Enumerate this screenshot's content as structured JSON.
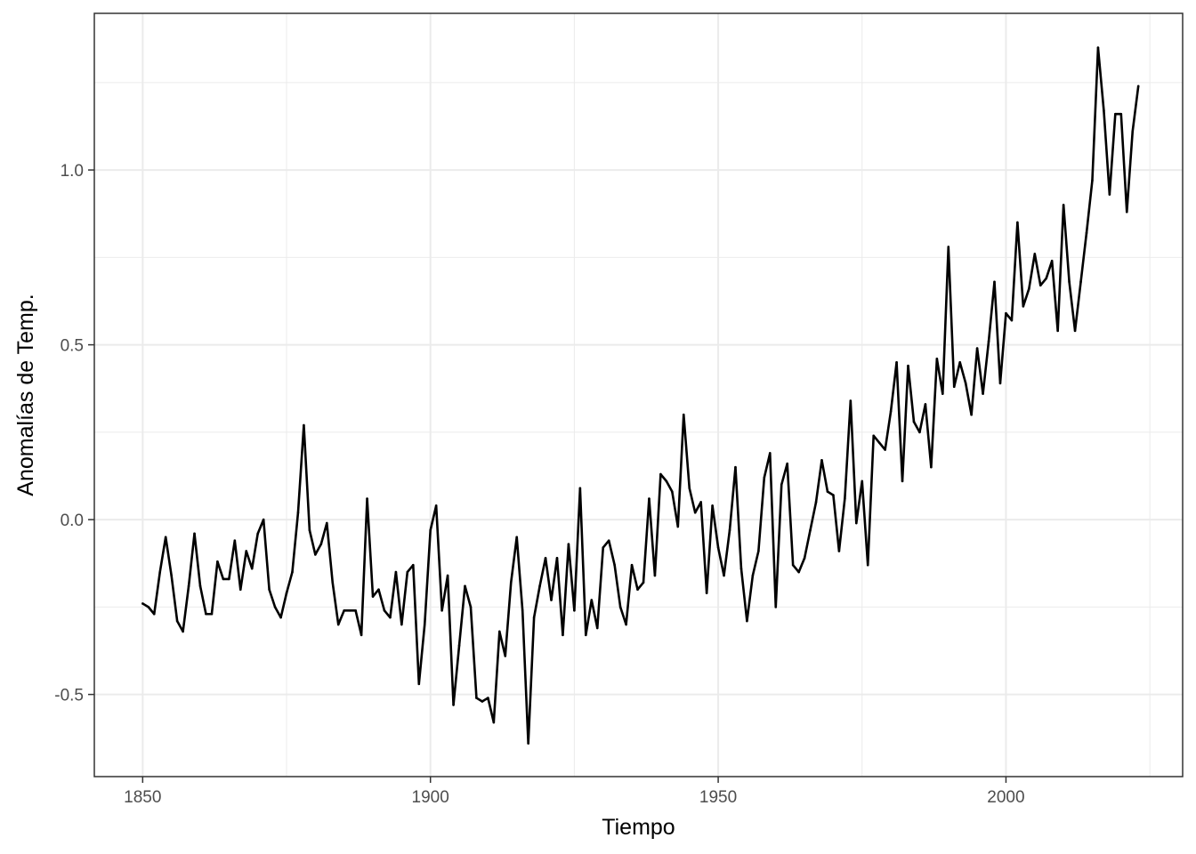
{
  "chart_data": {
    "type": "line",
    "xlabel": "Tiempo",
    "ylabel": "Anomalías de Temp.",
    "xlim": [
      1841.6,
      2030.7
    ],
    "ylim": [
      -0.735,
      1.448
    ],
    "x_ticks": [
      1850,
      1900,
      1950,
      2000
    ],
    "x_tick_labels": [
      "1850",
      "1900",
      "1950",
      "2000"
    ],
    "x_minor": [
      1875,
      1925,
      1975,
      2025
    ],
    "y_ticks": [
      -0.5,
      0.0,
      0.5,
      1.0
    ],
    "y_tick_labels": [
      "-0.5",
      "0.0",
      "0.5",
      "1.0"
    ],
    "y_minor": [
      -0.25,
      0.25,
      0.75,
      1.25
    ],
    "grid": true,
    "series": [
      {
        "x_start": 1850,
        "x_step": 1,
        "values": [
          -0.24,
          -0.25,
          -0.27,
          -0.15,
          -0.05,
          -0.16,
          -0.29,
          -0.32,
          -0.19,
          -0.04,
          -0.19,
          -0.27,
          -0.27,
          -0.12,
          -0.17,
          -0.17,
          -0.06,
          -0.2,
          -0.09,
          -0.14,
          -0.04,
          0.0,
          -0.2,
          -0.25,
          -0.28,
          -0.21,
          -0.15,
          0.02,
          0.27,
          -0.03,
          -0.1,
          -0.07,
          -0.01,
          -0.18,
          -0.3,
          -0.26,
          -0.26,
          -0.26,
          -0.33,
          0.06,
          -0.22,
          -0.2,
          -0.26,
          -0.28,
          -0.15,
          -0.3,
          -0.15,
          -0.13,
          -0.47,
          -0.3,
          -0.03,
          0.04,
          -0.26,
          -0.16,
          -0.53,
          -0.36,
          -0.19,
          -0.25,
          -0.51,
          -0.52,
          -0.51,
          -0.58,
          -0.32,
          -0.39,
          -0.18,
          -0.05,
          -0.26,
          -0.64,
          -0.28,
          -0.19,
          -0.11,
          -0.23,
          -0.11,
          -0.33,
          -0.07,
          -0.26,
          0.09,
          -0.33,
          -0.23,
          -0.31,
          -0.08,
          -0.06,
          -0.13,
          -0.25,
          -0.3,
          -0.13,
          -0.2,
          -0.18,
          0.06,
          -0.16,
          0.13,
          0.11,
          0.08,
          -0.02,
          0.3,
          0.09,
          0.02,
          0.05,
          -0.21,
          0.04,
          -0.08,
          -0.16,
          -0.03,
          0.15,
          -0.14,
          -0.29,
          -0.16,
          -0.09,
          0.12,
          0.19,
          -0.25,
          0.1,
          0.16,
          -0.13,
          -0.15,
          -0.11,
          -0.03,
          0.05,
          0.17,
          0.08,
          0.07,
          -0.09,
          0.06,
          0.34,
          -0.01,
          0.11,
          -0.13,
          0.24,
          0.22,
          0.2,
          0.31,
          0.45,
          0.11,
          0.44,
          0.28,
          0.25,
          0.33,
          0.15,
          0.46,
          0.36,
          0.78,
          0.38,
          0.45,
          0.39,
          0.3,
          0.49,
          0.36,
          0.51,
          0.68,
          0.39,
          0.59,
          0.57,
          0.85,
          0.61,
          0.66,
          0.76,
          0.67,
          0.69,
          0.74,
          0.54,
          0.9,
          0.68,
          0.54,
          0.68,
          0.82,
          0.97,
          1.35,
          1.17,
          0.93,
          1.16,
          1.16,
          0.88,
          1.11,
          1.24
        ]
      }
    ]
  }
}
